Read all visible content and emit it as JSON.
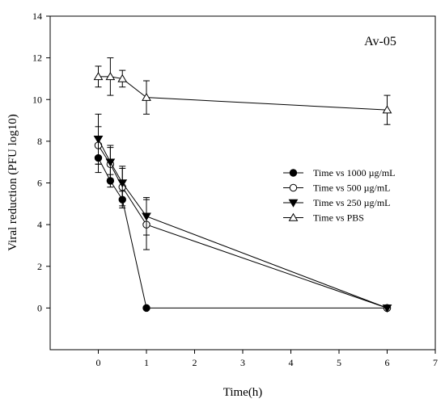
{
  "chart_data": {
    "type": "line",
    "annotation": "Av-05",
    "xlabel": "Time(h)",
    "ylabel": "Viral reduction   (PFU log10)",
    "xlim": [
      -1,
      7
    ],
    "ylim": [
      -2,
      14
    ],
    "xticks": [
      0,
      1,
      2,
      3,
      4,
      5,
      6,
      7
    ],
    "yticks": [
      0,
      2,
      4,
      6,
      8,
      10,
      12,
      14
    ],
    "grid": false,
    "legend_position": "right-middle",
    "series": [
      {
        "name": "Time vs 1000 µg/mL",
        "marker": "circle-filled",
        "x": [
          0,
          0.25,
          0.5,
          1,
          6
        ],
        "y": [
          7.2,
          6.1,
          5.2,
          0,
          0
        ],
        "err": [
          0.7,
          0.3,
          0.4,
          0,
          0
        ]
      },
      {
        "name": "Time vs 500  µg/mL",
        "marker": "circle-open",
        "x": [
          0,
          0.25,
          0.5,
          1,
          6
        ],
        "y": [
          7.8,
          6.9,
          5.8,
          4.0,
          0
        ],
        "err": [
          0.9,
          0.8,
          0.9,
          1.2,
          0
        ]
      },
      {
        "name": "Time vs 250 µg/mL",
        "marker": "triangle-down-filled",
        "x": [
          0,
          0.25,
          0.5,
          1,
          6
        ],
        "y": [
          8.1,
          7.0,
          6.0,
          4.4,
          0
        ],
        "err": [
          1.2,
          0.8,
          0.8,
          0.9,
          0
        ]
      },
      {
        "name": "Time vs PBS",
        "marker": "triangle-up-open",
        "x": [
          0,
          0.25,
          0.5,
          1,
          6
        ],
        "y": [
          11.1,
          11.1,
          11.0,
          10.1,
          9.5
        ],
        "err": [
          0.5,
          0.9,
          0.4,
          0.8,
          0.7
        ]
      }
    ]
  }
}
